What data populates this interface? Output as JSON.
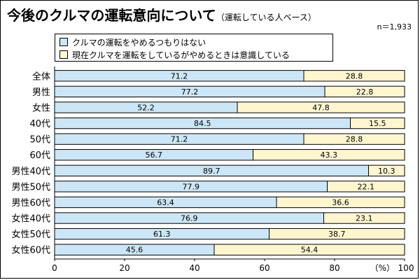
{
  "chart_data": {
    "type": "bar",
    "stacked": true,
    "orientation": "horizontal",
    "title": "今後のクルマの運転意向について",
    "subtitle": "（運転している人ベース）",
    "sample_size": "n＝1,933",
    "categories": [
      "全体",
      "男性",
      "女性",
      "40代",
      "50代",
      "60代",
      "男性40代",
      "男性50代",
      "男性60代",
      "女性40代",
      "女性50代",
      "女性60代"
    ],
    "series": [
      {
        "name": "クルマの運転をやめるつもりはない",
        "color": "#cce6f7",
        "values": [
          71.2,
          77.2,
          52.2,
          84.5,
          71.2,
          56.7,
          89.7,
          77.9,
          63.4,
          76.9,
          61.3,
          45.6
        ]
      },
      {
        "name": "現在クルマを運転をしているがやめるときは意識している",
        "color": "#fff6d0",
        "values": [
          28.8,
          22.8,
          47.8,
          15.5,
          28.8,
          43.3,
          10.3,
          22.1,
          36.6,
          23.1,
          38.7,
          54.4
        ]
      }
    ],
    "xlim": [
      0,
      100
    ],
    "x_ticks": [
      "0",
      "20",
      "40",
      "60",
      "80",
      "100"
    ],
    "x_unit_label": "（%）",
    "xlabel": "",
    "ylabel": "",
    "legend": "top-left"
  }
}
